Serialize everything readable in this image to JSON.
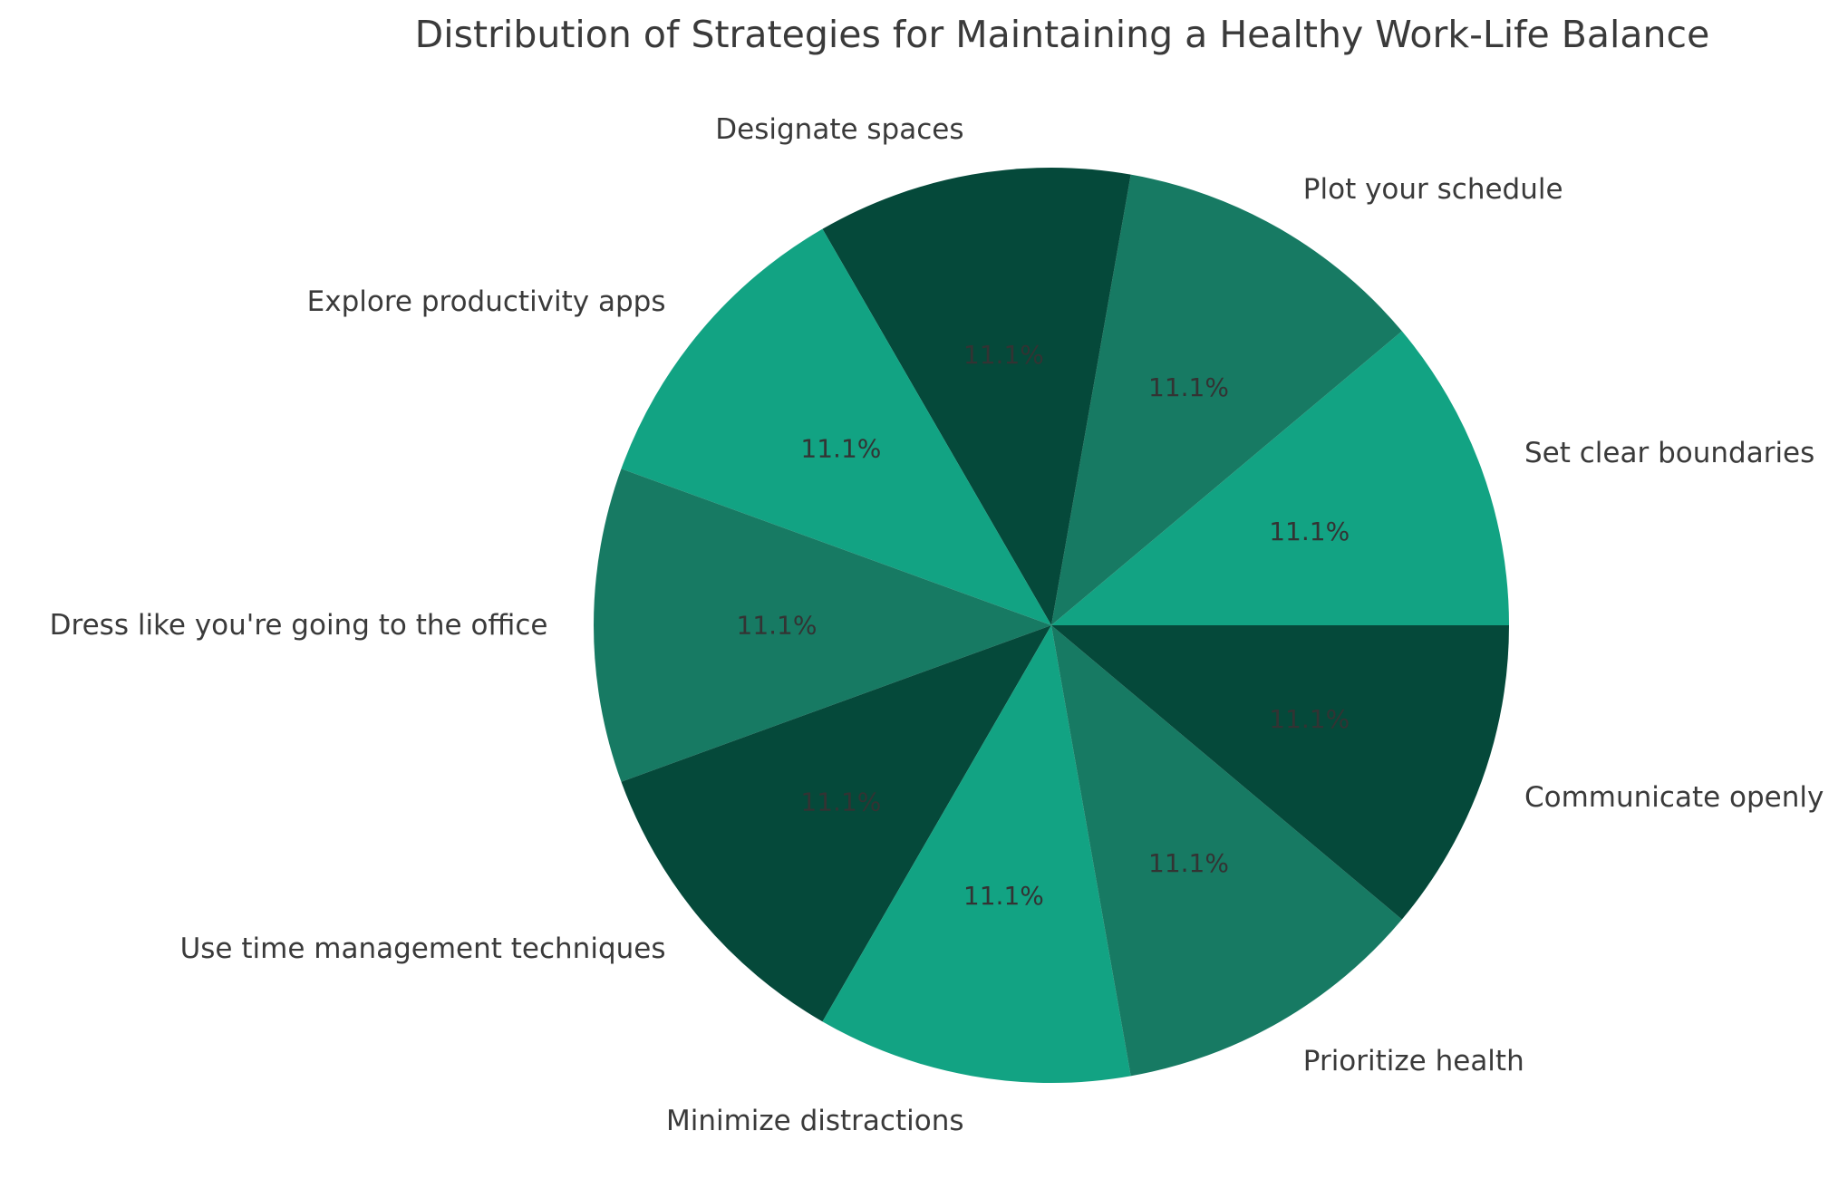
{
  "chart_data": {
    "type": "pie",
    "title": "Distribution of Strategies for Maintaining a Healthy Work-Life Balance",
    "categories": [
      "Set clear boundaries",
      "Plot your schedule",
      "Designate spaces",
      "Explore productivity apps",
      "Dress like you're going to the office",
      "Use time management techniques",
      "Minimize distractions",
      "Prioritize health",
      "Communicate openly"
    ],
    "values": [
      11.1,
      11.1,
      11.1,
      11.1,
      11.1,
      11.1,
      11.1,
      11.1,
      11.1
    ],
    "pct_labels": [
      "11.1%",
      "11.1%",
      "11.1%",
      "11.1%",
      "11.1%",
      "11.1%",
      "11.1%",
      "11.1%",
      "11.1%"
    ],
    "colors": [
      "#12A383",
      "#177A63",
      "#05493A",
      "#12A383",
      "#177A63",
      "#05493A",
      "#12A383",
      "#177A63",
      "#05493A"
    ],
    "palette": {
      "bright_green": "#12A383",
      "medium_green": "#177A63",
      "dark_green": "#05493A"
    },
    "start_angle_deg": 0,
    "direction": "counterclockwise",
    "label_color": "#3A3A3A",
    "pct_color": "#333333",
    "background": "#FFFFFF",
    "legend": "none",
    "grid": "off"
  }
}
